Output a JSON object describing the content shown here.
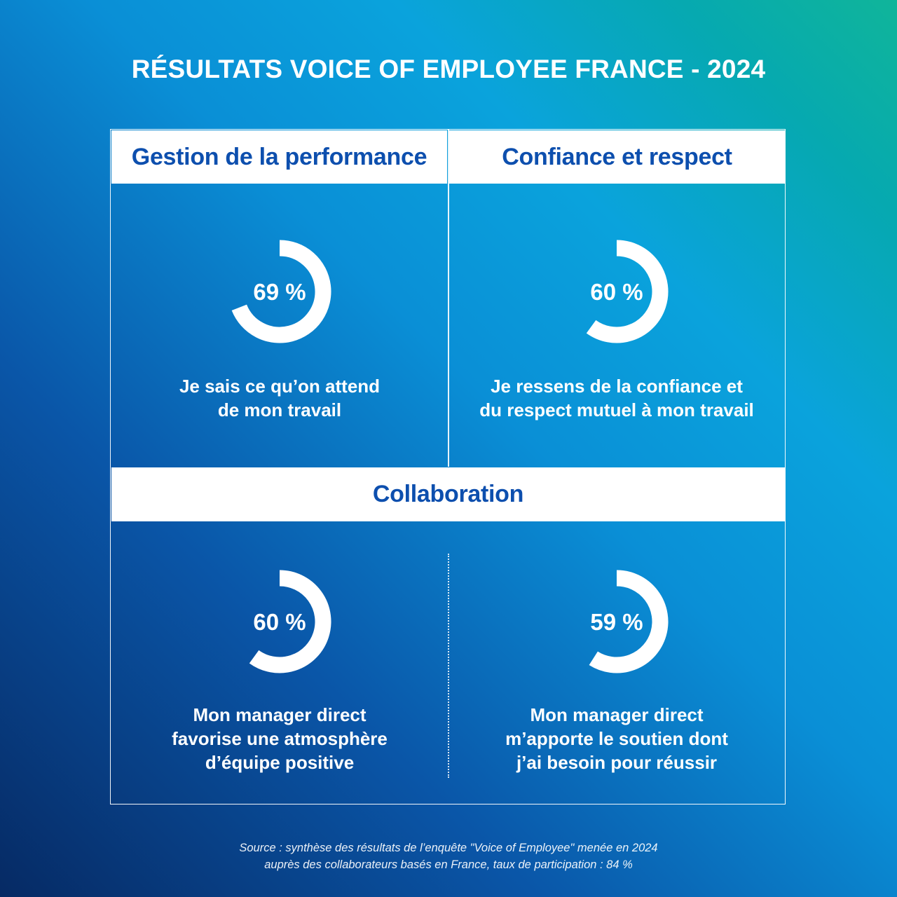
{
  "title": "RÉSULTATS VOICE OF EMPLOYEE FRANCE - 2024",
  "sections": {
    "performance": "Gestion de la performance",
    "trust": "Confiance et respect",
    "collaboration": "Collaboration"
  },
  "ring_color": "#ffffff",
  "chart_data": [
    {
      "type": "pie",
      "section": "Gestion de la performance",
      "value": 69,
      "label": "69 %",
      "caption": "Je sais ce qu’on attend\nde mon travail"
    },
    {
      "type": "pie",
      "section": "Confiance et respect",
      "value": 60,
      "label": "60 %",
      "caption": "Je ressens de la confiance et\ndu respect mutuel à mon travail"
    },
    {
      "type": "pie",
      "section": "Collaboration",
      "value": 60,
      "label": "60 %",
      "caption": "Mon manager direct\nfavorise une atmosphère\nd’équipe positive"
    },
    {
      "type": "pie",
      "section": "Collaboration",
      "value": 59,
      "label": "59 %",
      "caption": "Mon manager direct\nm’apporte le soutien dont\nj’ai besoin pour réussir"
    }
  ],
  "source": "Source : synthèse des résultats de l’enquête \"Voice of Employee\" menée en 2024\nauprès des collaborateurs basés en France, taux de participation : 84 %"
}
